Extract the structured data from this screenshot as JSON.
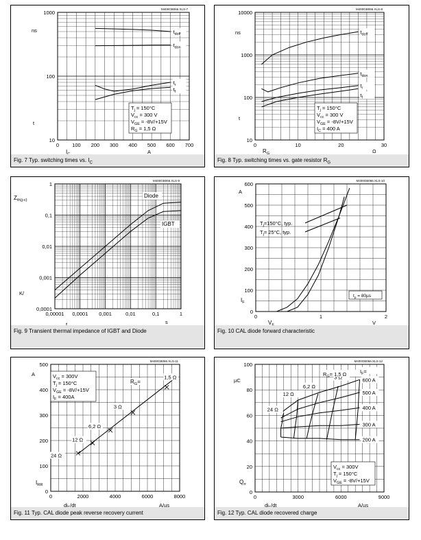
{
  "chart_data": [
    {
      "id": "fig7",
      "type": "line",
      "caption": "Fig. 7 Typ. switching times vs. I",
      "caption_sub": "C",
      "code": "M400GB066.XLS-7",
      "xlim": [
        0,
        700
      ],
      "ylim": [
        10,
        1000
      ],
      "ylog": true,
      "xticks": [
        "0",
        "100",
        "200",
        "300",
        "400",
        "500",
        "600",
        "700"
      ],
      "yticks": [
        "10",
        "100",
        "1000"
      ],
      "ylabel_unit": "ns",
      "ylabel": "t",
      "xlabel_sym": "I",
      "xlabel_sub": "C",
      "xlabel_unit": "A",
      "series": [
        {
          "name": "t",
          "name_sub": "doff",
          "x": [
            200,
            300,
            400,
            500,
            600
          ],
          "y": [
            560,
            550,
            540,
            525,
            500
          ]
        },
        {
          "name": "t",
          "name_sub": "don",
          "x": [
            200,
            300,
            400,
            500,
            600
          ],
          "y": [
            300,
            302,
            304,
            306,
            308
          ]
        },
        {
          "name": "t",
          "name_sub": "r",
          "x": [
            200,
            250,
            300,
            400,
            500,
            600
          ],
          "y": [
            72,
            63,
            58,
            63,
            72,
            80
          ]
        },
        {
          "name": "t",
          "name_sub": "f",
          "x": [
            200,
            300,
            400,
            500,
            600
          ],
          "y": [
            43,
            52,
            59,
            64,
            67
          ]
        }
      ],
      "legend_lines": [
        {
          "sym": "T",
          "sub": "j",
          "text": " = 150°C"
        },
        {
          "sym": "V",
          "sub": "cc",
          "text": " = 300 V"
        },
        {
          "sym": "V",
          "sub": "GE",
          "text": " = -8V/+15V"
        },
        {
          "sym": "R",
          "sub": "G",
          "text": " = 1,5 Ω"
        }
      ]
    },
    {
      "id": "fig8",
      "type": "line",
      "caption": "Fig. 8 Typ. switching times vs. gate resistor R",
      "caption_sub": "G",
      "code": "M400GB066.XLS-8",
      "xlim": [
        0,
        30
      ],
      "ylim": [
        10,
        10000
      ],
      "ylog": true,
      "xticks": [
        "0",
        "10",
        "20",
        "30"
      ],
      "yticks": [
        "10",
        "100",
        "1000",
        "10000"
      ],
      "ylabel_unit": "ns",
      "ylabel": "t",
      "xlabel_sym": "R",
      "xlabel_sub": "G",
      "xlabel_unit": "Ω",
      "series": [
        {
          "name": "t",
          "name_sub": "doff",
          "x": [
            1.5,
            4,
            8,
            12,
            16,
            20,
            24
          ],
          "y": [
            600,
            1000,
            1500,
            2000,
            2500,
            3000,
            3500
          ]
        },
        {
          "name": "t",
          "name_sub": "don",
          "x": [
            1.5,
            3,
            6,
            10,
            15,
            20,
            24
          ],
          "y": [
            160,
            135,
            170,
            220,
            280,
            330,
            370
          ]
        },
        {
          "name": "t",
          "name_sub": "r",
          "x": [
            1.5,
            5,
            10,
            15,
            20,
            24
          ],
          "y": [
            80,
            100,
            125,
            150,
            170,
            190
          ]
        },
        {
          "name": "t",
          "name_sub": "f",
          "x": [
            1.5,
            5,
            10,
            15,
            20,
            24
          ],
          "y": [
            60,
            80,
            100,
            120,
            140,
            160
          ]
        }
      ],
      "legend_lines": [
        {
          "sym": "T",
          "sub": "j",
          "text": " = 150°C"
        },
        {
          "sym": "V",
          "sub": "cc",
          "text": " = 300 V"
        },
        {
          "sym": "V",
          "sub": "GE",
          "text": " = -8V/+15V"
        },
        {
          "sym": "I",
          "sub": "C",
          "text": " = 400 A"
        }
      ]
    },
    {
      "id": "fig9",
      "type": "line",
      "caption": "Fig. 9 Transient thermal impedance of IGBT and Diode",
      "caption_sub": "",
      "code": "M400GB066.XLS-9",
      "xlim": [
        1e-05,
        1
      ],
      "ylim": [
        0.0001,
        1
      ],
      "xlog": true,
      "ylog": true,
      "xticks": [
        "0,00001",
        "0,0001",
        "0,001",
        "0,01",
        "0,1",
        "1"
      ],
      "yticks": [
        "0,0001",
        "0,001",
        "0,01",
        "0,1",
        "1"
      ],
      "ylabel_sym": "Z",
      "ylabel_sub": "th(j-c)",
      "ylabel_unit": "K/",
      "xlabel_sym": "t",
      "xlabel_sub": "p",
      "xlabel_unit": "s",
      "series": [
        {
          "name": "Diode",
          "x": [
            1e-05,
            0.0001,
            0.001,
            0.01,
            0.05,
            0.2,
            1
          ],
          "y": [
            0.0004,
            0.002,
            0.01,
            0.05,
            0.14,
            0.24,
            0.26
          ]
        },
        {
          "name": "IGBT",
          "x": [
            1e-05,
            0.0001,
            0.001,
            0.01,
            0.05,
            0.2,
            1
          ],
          "y": [
            0.00022,
            0.0012,
            0.006,
            0.03,
            0.08,
            0.13,
            0.14
          ]
        }
      ]
    },
    {
      "id": "fig10",
      "type": "line",
      "caption": "Fig. 10 CAL diode forward characteristic",
      "caption_sub": "",
      "code": "M400GB066.XLS-10",
      "xlim": [
        0,
        2.5
      ],
      "ylim": [
        0,
        600
      ],
      "xticks": [
        "0",
        "1",
        "2"
      ],
      "yticks": [
        "0",
        "100",
        "200",
        "300",
        "400",
        "500",
        "600"
      ],
      "ylabel_sym": "I",
      "ylabel_sub": "F",
      "ylabel_unit": "A",
      "xlabel_sym": "V",
      "xlabel_sub": "F",
      "xlabel_unit": "V",
      "series": [
        {
          "name": "T",
          "name_sub": "j",
          "name_rest": "=150°C, typ.",
          "x": [
            0.4,
            0.6,
            0.8,
            1.0,
            1.2,
            1.4,
            1.6,
            1.8
          ],
          "y": [
            0,
            20,
            60,
            130,
            220,
            330,
            450,
            580
          ]
        },
        {
          "name": "T",
          "name_sub": "j",
          "name_rest": "= 25°C, typ.",
          "x": [
            0.6,
            0.8,
            1.0,
            1.2,
            1.4,
            1.6,
            1.7
          ],
          "y": [
            0,
            20,
            80,
            170,
            300,
            450,
            540
          ]
        }
      ],
      "note": {
        "sym": "t",
        "sub": "p",
        "text": " = 80µs"
      }
    },
    {
      "id": "fig11",
      "type": "line",
      "caption": "Fig. 11 Typ. CAL diode peak reverse recovery current",
      "caption_sub": "",
      "code": "M400GB066.XLS-11",
      "xlim": [
        0,
        8000
      ],
      "ylim": [
        0,
        500
      ],
      "xticks": [
        "0",
        "2000",
        "4000",
        "6000",
        "8000"
      ],
      "yticks": [
        "0",
        "100",
        "200",
        "300",
        "400",
        "500"
      ],
      "ylabel_sym": "I",
      "ylabel_sub": "RR",
      "ylabel_unit": "A",
      "xlabel_sym": "di",
      "xlabel_sub": "F",
      "xlabel_rest": "/dt",
      "xlabel_unit": "A/µs",
      "series": [
        {
          "name": "",
          "x": [
            1700,
            2600,
            3700,
            5100,
            7200
          ],
          "y": [
            150,
            190,
            240,
            310,
            410
          ]
        }
      ],
      "point_labels": [
        "24 Ω",
        "12 Ω",
        "6,2 Ω",
        "3 Ω",
        "1,5 Ω"
      ],
      "rg_label": "R",
      "rg_label_sub": "G",
      "rg_label_rest": "=",
      "legend_lines": [
        {
          "sym": "V",
          "sub": "cc",
          "text": " = 300V"
        },
        {
          "sym": "T",
          "sub": "j",
          "text": " = 150°C"
        },
        {
          "sym": "V",
          "sub": "GE",
          "text": " = -8V/+15V"
        },
        {
          "sym": "I",
          "sub": "F",
          "text": " = 400A"
        }
      ]
    },
    {
      "id": "fig12",
      "type": "line",
      "caption": "Fig. 12 Typ. CAL diode recovered charge",
      "caption_sub": "",
      "code": "M400GB066.XLS-12",
      "xlim": [
        0,
        9000
      ],
      "ylim": [
        0,
        100
      ],
      "xticks": [
        "0",
        "3000",
        "6000",
        "9000"
      ],
      "yticks": [
        "0",
        "20",
        "40",
        "60",
        "80",
        "100"
      ],
      "ylabel_sym": "Q",
      "ylabel_sub": "rr",
      "ylabel_unit": "µC",
      "xlabel_sym": "di",
      "xlabel_sub": "F",
      "xlabel_rest": "/dt",
      "xlabel_unit": "A/µs",
      "currents": [
        "600 A",
        "500 A",
        "400 A",
        "300 A",
        "200 A"
      ],
      "current_series": [
        {
          "x": [
            1800,
            3000,
            4500,
            6000,
            7300
          ],
          "y": [
            62,
            72,
            78,
            83,
            88
          ]
        },
        {
          "x": [
            1800,
            3000,
            4500,
            6000,
            7300
          ],
          "y": [
            58,
            65,
            70,
            74,
            78
          ]
        },
        {
          "x": [
            1800,
            3000,
            4500,
            6000,
            7300
          ],
          "y": [
            55,
            59,
            62,
            64,
            66
          ]
        },
        {
          "x": [
            1800,
            3000,
            4500,
            6000,
            7300
          ],
          "y": [
            50,
            51,
            52,
            52,
            53
          ]
        },
        {
          "x": [
            1800,
            3000,
            4500,
            6000,
            7300
          ],
          "y": [
            43,
            42,
            42,
            41,
            41
          ]
        }
      ],
      "rg_series": [
        {
          "label": "24 Ω",
          "x": [
            1800,
            1800,
            1900,
            1900,
            2000
          ],
          "y": [
            43,
            50,
            55,
            58,
            62
          ]
        },
        {
          "label": "12 Ω",
          "x": [
            2700,
            2800,
            2900,
            2950,
            3000
          ],
          "y": [
            42,
            51,
            59,
            65,
            72
          ]
        },
        {
          "label": "6,2 Ω",
          "x": [
            3600,
            3800,
            4000,
            4200,
            4400
          ],
          "y": [
            42,
            52,
            61,
            69,
            77
          ]
        },
        {
          "label": "3 Ω",
          "x": [
            5000,
            5200,
            5400,
            5600,
            5800
          ],
          "y": [
            41,
            52,
            63,
            73,
            83
          ]
        },
        {
          "label": "1,5 Ω",
          "x": [
            7000,
            7100,
            7200,
            7250,
            7300
          ],
          "y": [
            41,
            53,
            66,
            78,
            88
          ]
        }
      ],
      "rg_label": "R",
      "rg_label_sub": "G",
      "rg_label_rest": "= 1,5 Ω",
      "if_label": "I",
      "if_label_sub": "F",
      "if_label_rest": "=",
      "legend_lines": [
        {
          "sym": "V",
          "sub": "cc",
          "text": " = 300V"
        },
        {
          "sym": "T",
          "sub": "j",
          "text": " = 150°C"
        },
        {
          "sym": "V",
          "sub": "GE",
          "text": " = -8V/+15V"
        }
      ]
    }
  ]
}
